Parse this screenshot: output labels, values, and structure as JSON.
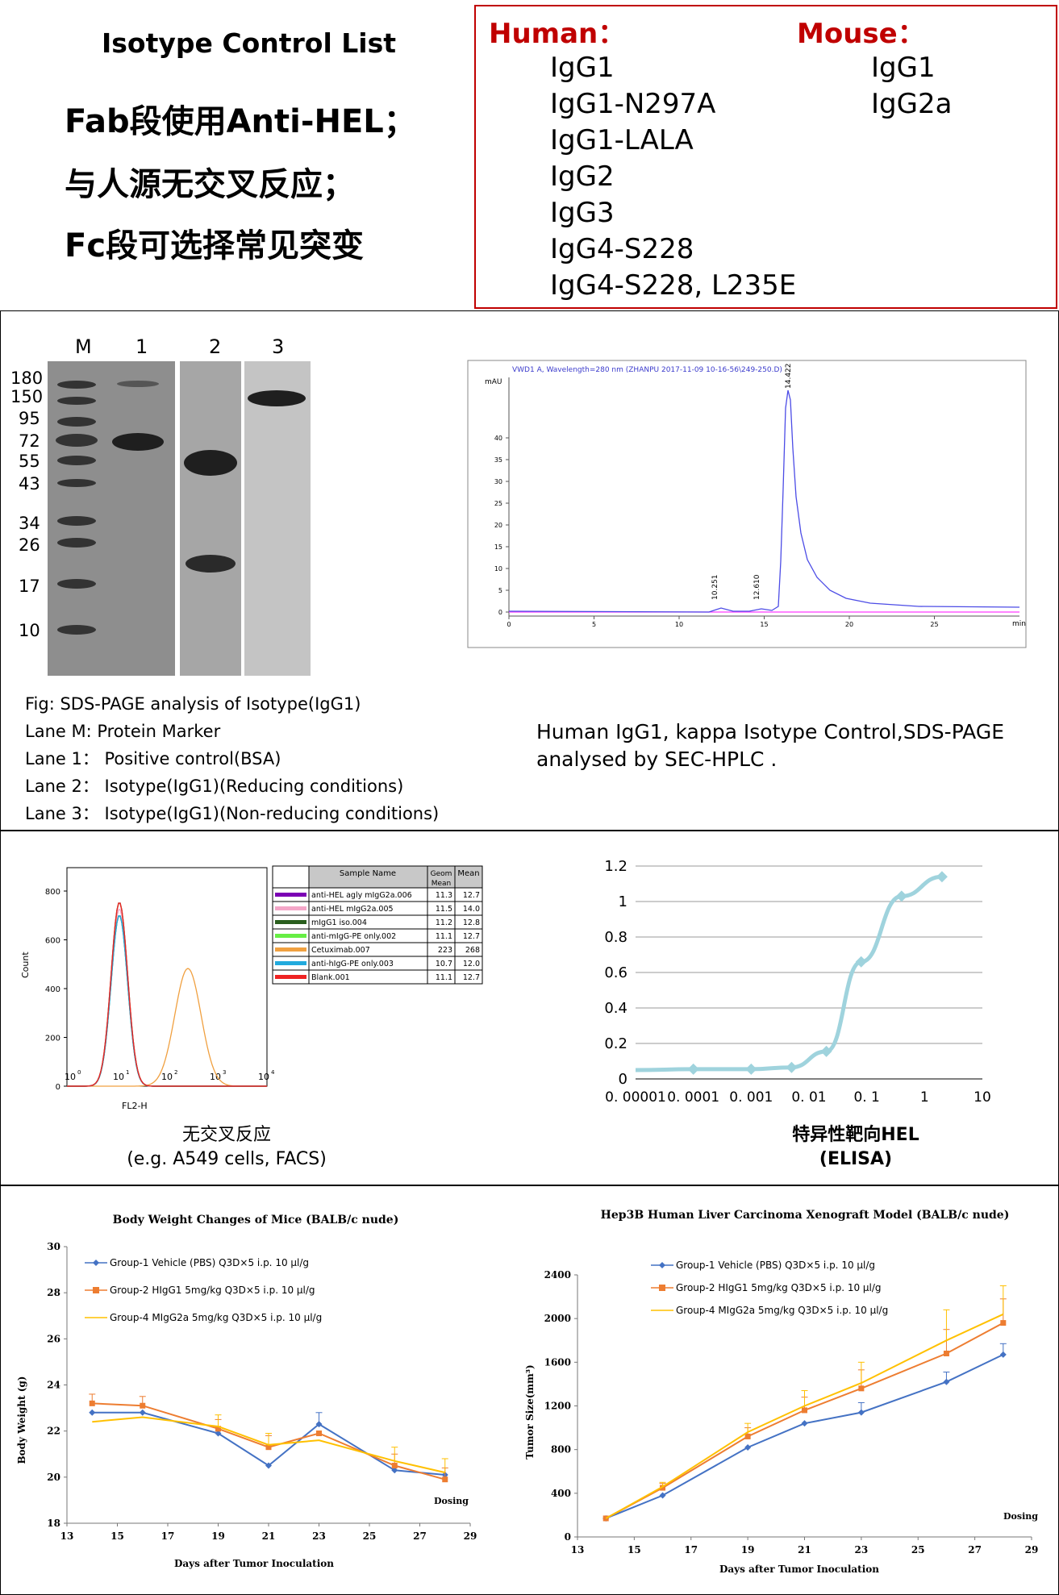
{
  "top": {
    "title": "Isotype Control List",
    "lines": [
      "Fab段使用Anti-HEL；",
      "与人源无交叉反应；",
      "Fc段可选择常见突变"
    ],
    "human_label": "Human：",
    "human_items": [
      "IgG1",
      "IgG1-N297A",
      "IgG1-LALA",
      "IgG2",
      "IgG3",
      "IgG4-S228",
      "IgG4-S228, L235E"
    ],
    "mouse_label": "Mouse：",
    "mouse_items": [
      "IgG1",
      "IgG2a"
    ],
    "accent": "#c00000"
  },
  "gel": {
    "lanes": [
      "M",
      "1",
      "2",
      "3"
    ],
    "markers": [
      "180",
      "150",
      "95",
      "72",
      "55",
      "43",
      "34",
      "26",
      "17",
      "10"
    ],
    "legend": [
      "Fig: SDS-PAGE analysis of Isotype(IgG1)",
      "Lane M: Protein Marker",
      "Lane 1： Positive control(BSA)",
      "Lane 2： Isotype(IgG1)(Reducing conditions)",
      "Lane 3： Isotype(IgG1)(Non-reducing conditions)"
    ]
  },
  "hplc": {
    "header": "VWD1 A, Wavelength=280 nm (ZHANPU 2017-11-09 10-16-56\\249-250.D)",
    "yunit": "mAU",
    "xunit": "min",
    "yticks": [
      "0",
      "5",
      "10",
      "15",
      "20",
      "25",
      "30",
      "35",
      "40"
    ],
    "xticks": [
      "0",
      "5",
      "10",
      "15",
      "20",
      "25"
    ],
    "peaks": [
      {
        "time": 10.251,
        "label": "10.251"
      },
      {
        "time": 12.61,
        "label": "12.610"
      },
      {
        "time": 14.422,
        "label": "14.422"
      }
    ],
    "caption": [
      "Human IgG1, kappa Isotype Control,SDS-PAGE",
      "analysed by SEC-HPLC ."
    ]
  },
  "facs": {
    "ylabel": "Count",
    "xlabel": "FL2-H",
    "yticks": [
      "0",
      "200",
      "400",
      "600",
      "800"
    ],
    "table_headers": [
      "Sample Name",
      "Geom Mean",
      "Mean"
    ],
    "rows": [
      {
        "name": "anti-HEL agly mIgG2a.006",
        "geom": "11.3",
        "mean": "12.7",
        "color": "#7b00b4"
      },
      {
        "name": "anti-HEL mIgG2a.005",
        "geom": "11.5",
        "mean": "14.0",
        "color": "#f4a6c8"
      },
      {
        "name": "mIgG1 iso.004",
        "geom": "11.2",
        "mean": "12.8",
        "color": "#2a5e1e"
      },
      {
        "name": "anti-mIgG-PE  only.002",
        "geom": "11.1",
        "mean": "12.7",
        "color": "#66ee44"
      },
      {
        "name": "Cetuximab.007",
        "geom": "223",
        "mean": "268",
        "color": "#f0a040"
      },
      {
        "name": "anti-hIgG-PE  only.003",
        "geom": "10.7",
        "mean": "12.0",
        "color": "#22aadd"
      },
      {
        "name": "Blank.001",
        "geom": "11.1",
        "mean": "12.7",
        "color": "#ee2222"
      }
    ],
    "caption": [
      "无交叉反应",
      "(e.g. A549 cells, FACS)"
    ]
  },
  "elisa": {
    "yticks": [
      "0",
      "0.2",
      "0.4",
      "0.6",
      "0.8",
      "1",
      "1.2"
    ],
    "xticks": [
      "0. 00001",
      "0. 0001",
      "0. 001",
      "0. 01",
      "0. 1",
      "1",
      "10"
    ],
    "caption": [
      "特异性靶向HEL",
      "(ELISA)"
    ]
  },
  "body_weight": {
    "title": "Body Weight Changes of Mice (BALB/c nude)",
    "ylabel": "Body Weight (g)",
    "xlabel": "Days after Tumor Inoculation",
    "dosing": "Dosing",
    "legend": [
      "Group-1 Vehicle (PBS) Q3D×5 i.p. 10 μl/g",
      "Group-2 HIgG1 5mg/kg Q3D×5 i.p. 10 μl/g",
      "Group-4 MIgG2a 5mg/kg Q3D×5 i.p. 10 μl/g"
    ]
  },
  "tumor": {
    "title": "Hep3B Human Liver Carcinoma Xenograft Model (BALB/c nude)",
    "ylabel": "Tumor Size(mm³)",
    "xlabel": "Days after Tumor Inoculation",
    "dosing": "Dosing",
    "legend": [
      "Group-1 Vehicle (PBS) Q3D×5 i.p. 10 μl/g",
      "Group-2 HIgG1 5mg/kg Q3D×5 i.p. 10 μl/g",
      "Group-4 MIgG2a 5mg/kg Q3D×5 i.p. 10 μl/g"
    ]
  },
  "chart_data": [
    {
      "type": "line",
      "x": [
        14,
        16,
        19,
        21,
        23,
        26,
        28
      ],
      "series": [
        {
          "name": "Group-1 Vehicle (PBS) Q3D×5 i.p. 10 μl/g",
          "values": [
            22.8,
            22.8,
            21.9,
            20.5,
            22.3,
            20.3,
            20.1
          ],
          "color": "#4472c4"
        },
        {
          "name": "Group-2 HIgG1 5mg/kg Q3D×5 i.p. 10 μl/g",
          "values": [
            23.2,
            23.1,
            22.1,
            21.3,
            21.9,
            20.5,
            19.9
          ],
          "color": "#ed7d31"
        },
        {
          "name": "Group-4 MIgG2a 5mg/kg Q3D×5 i.p. 10 μl/g",
          "values": [
            22.4,
            22.6,
            22.2,
            21.4,
            21.6,
            20.7,
            20.2
          ],
          "color": "#ffc000"
        }
      ],
      "title": "Body Weight Changes of Mice (BALB/c nude)",
      "xlabel": "Days after Tumor Inoculation",
      "ylabel": "Body Weight (g)",
      "xlim": [
        13,
        29
      ],
      "ylim": [
        18,
        30
      ],
      "xticks": [
        13,
        15,
        17,
        19,
        21,
        23,
        25,
        27,
        29
      ],
      "yticks": [
        18,
        20,
        22,
        24,
        26,
        28,
        30
      ],
      "legend": "top-left"
    },
    {
      "type": "line",
      "x": [
        14,
        16,
        19,
        21,
        23,
        26,
        28
      ],
      "series": [
        {
          "name": "Group-1 Vehicle (PBS) Q3D×5 i.p. 10 μl/g",
          "values": [
            170,
            380,
            820,
            1040,
            1140,
            1420,
            1670
          ],
          "color": "#4472c4"
        },
        {
          "name": "Group-2 HIgG1 5mg/kg Q3D×5 i.p. 10 μl/g",
          "values": [
            170,
            450,
            920,
            1160,
            1360,
            1680,
            1960
          ],
          "color": "#ed7d31"
        },
        {
          "name": "Group-4 MIgG2a 5mg/kg Q3D×5 i.p. 10 μl/g",
          "values": [
            170,
            460,
            960,
            1200,
            1410,
            1800,
            2040
          ],
          "color": "#ffc000"
        }
      ],
      "title": "Hep3B Human Liver Carcinoma Xenograft Model (BALB/c nude)",
      "xlabel": "Days after Tumor Inoculation",
      "ylabel": "Tumor Size(mm³)",
      "xlim": [
        13,
        29
      ],
      "ylim": [
        0,
        2400
      ],
      "xticks": [
        13,
        15,
        17,
        19,
        21,
        23,
        25,
        27,
        29
      ],
      "yticks": [
        0,
        400,
        800,
        1200,
        1600,
        2000,
        2400
      ],
      "legend": "top-left"
    },
    {
      "type": "line",
      "x_scale": "log",
      "x": [
        1e-05,
        0.0001,
        0.001,
        0.005,
        0.02,
        0.08,
        0.4,
        2
      ],
      "values": [
        0.05,
        0.055,
        0.055,
        0.065,
        0.155,
        0.66,
        1.03,
        1.14
      ],
      "ylim": [
        0,
        1.2
      ],
      "color": "#9fd3dd",
      "grid": true
    }
  ]
}
